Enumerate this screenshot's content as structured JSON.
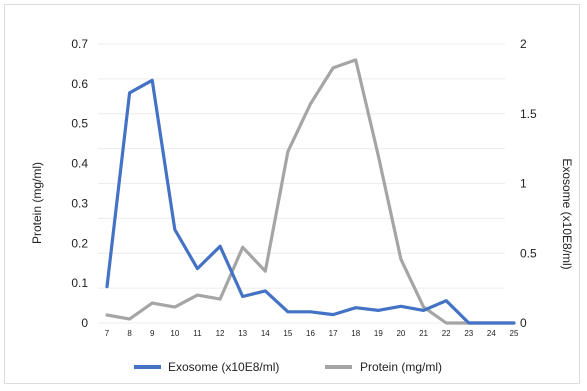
{
  "chart_data": {
    "type": "line",
    "title": "",
    "x": [
      "7",
      "8",
      "9",
      "10",
      "11",
      "12",
      "13",
      "14",
      "15",
      "16",
      "17",
      "18",
      "19",
      "20",
      "21",
      "22",
      "23",
      "24",
      "25"
    ],
    "xlabel": "",
    "ylabel_left": "Protein (mg/ml)",
    "ylabel_right": "Exosome (x10E8/ml)",
    "ylim_left": [
      0,
      0.7
    ],
    "yticks_left": [
      "0",
      "0.1",
      "0.2",
      "0.3",
      "0.4",
      "0.5",
      "0.6",
      "0.7"
    ],
    "ylim_right": [
      0,
      2
    ],
    "yticks_right": [
      "0",
      "0.5",
      "1",
      "1.5",
      "2"
    ],
    "grid": true,
    "legend_position": "bottom",
    "series": [
      {
        "name": "Exosome (x10E8/ml)",
        "axis": "right",
        "color": "#4472c4",
        "values": [
          0.26,
          1.65,
          1.74,
          0.67,
          0.39,
          0.55,
          0.19,
          0.23,
          0.08,
          0.08,
          0.06,
          0.11,
          0.09,
          0.12,
          0.09,
          0.16,
          0.0,
          0.0,
          0.0
        ]
      },
      {
        "name": "Protein (mg/ml)",
        "axis": "left",
        "color": "#a5a5a5",
        "values": [
          0.02,
          0.01,
          0.05,
          0.04,
          0.07,
          0.06,
          0.19,
          0.13,
          0.43,
          0.55,
          0.64,
          0.66,
          0.42,
          0.16,
          0.04,
          0.0,
          0.0,
          0.0,
          0.0
        ]
      }
    ]
  }
}
